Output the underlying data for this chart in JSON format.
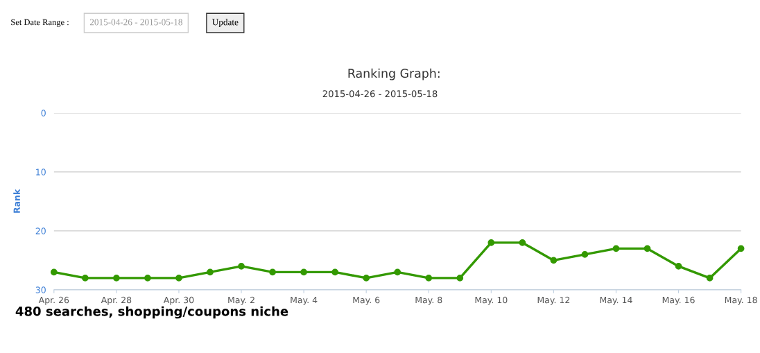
{
  "chart_data": {
    "type": "line",
    "title": "Ranking Graph:",
    "subtitle": "2015-04-26 - 2015-05-18",
    "ylabel": "Rank",
    "annotations": [
      "Set Date Range :",
      "2015-04-26 - 2015-05-18",
      "Update",
      "480 searches, shopping/coupons niche"
    ],
    "x": [
      "2015-04-26",
      "2015-04-27",
      "2015-04-28",
      "2015-04-29",
      "2015-04-30",
      "2015-05-01",
      "2015-05-02",
      "2015-05-03",
      "2015-05-04",
      "2015-05-05",
      "2015-05-06",
      "2015-05-07",
      "2015-05-08",
      "2015-05-09",
      "2015-05-10",
      "2015-05-11",
      "2015-05-12",
      "2015-05-13",
      "2015-05-14",
      "2015-05-15",
      "2015-05-16",
      "2015-05-17",
      "2015-05-18"
    ],
    "series": [
      {
        "color": "#339900",
        "values": [
          27,
          28,
          28,
          28,
          28,
          27,
          26,
          27,
          27,
          27,
          28,
          27,
          28,
          28,
          22,
          22,
          25,
          24,
          23,
          23,
          26,
          28,
          23
        ]
      }
    ],
    "xlim": [
      "2015-04-26",
      "2015-05-18"
    ],
    "xticks": [
      {
        "value": "2015-04-26",
        "label": "Apr. 26"
      },
      {
        "value": "2015-04-28",
        "label": "Apr. 28"
      },
      {
        "value": "2015-04-30",
        "label": "Apr. 30"
      },
      {
        "value": "2015-05-02",
        "label": "May. 2"
      },
      {
        "value": "2015-05-04",
        "label": "May. 4"
      },
      {
        "value": "2015-05-06",
        "label": "May. 6"
      },
      {
        "value": "2015-05-08",
        "label": "May. 8"
      },
      {
        "value": "2015-05-10",
        "label": "May. 10"
      },
      {
        "value": "2015-05-12",
        "label": "May. 12"
      },
      {
        "value": "2015-05-14",
        "label": "May. 14"
      },
      {
        "value": "2015-05-16",
        "label": "May. 16"
      },
      {
        "value": "2015-05-18",
        "label": "May. 18"
      }
    ],
    "ylim": [
      30,
      0
    ],
    "yticks": [
      0,
      10,
      20,
      30
    ],
    "grid": "y",
    "marker": "circle",
    "line_style": "solid"
  }
}
